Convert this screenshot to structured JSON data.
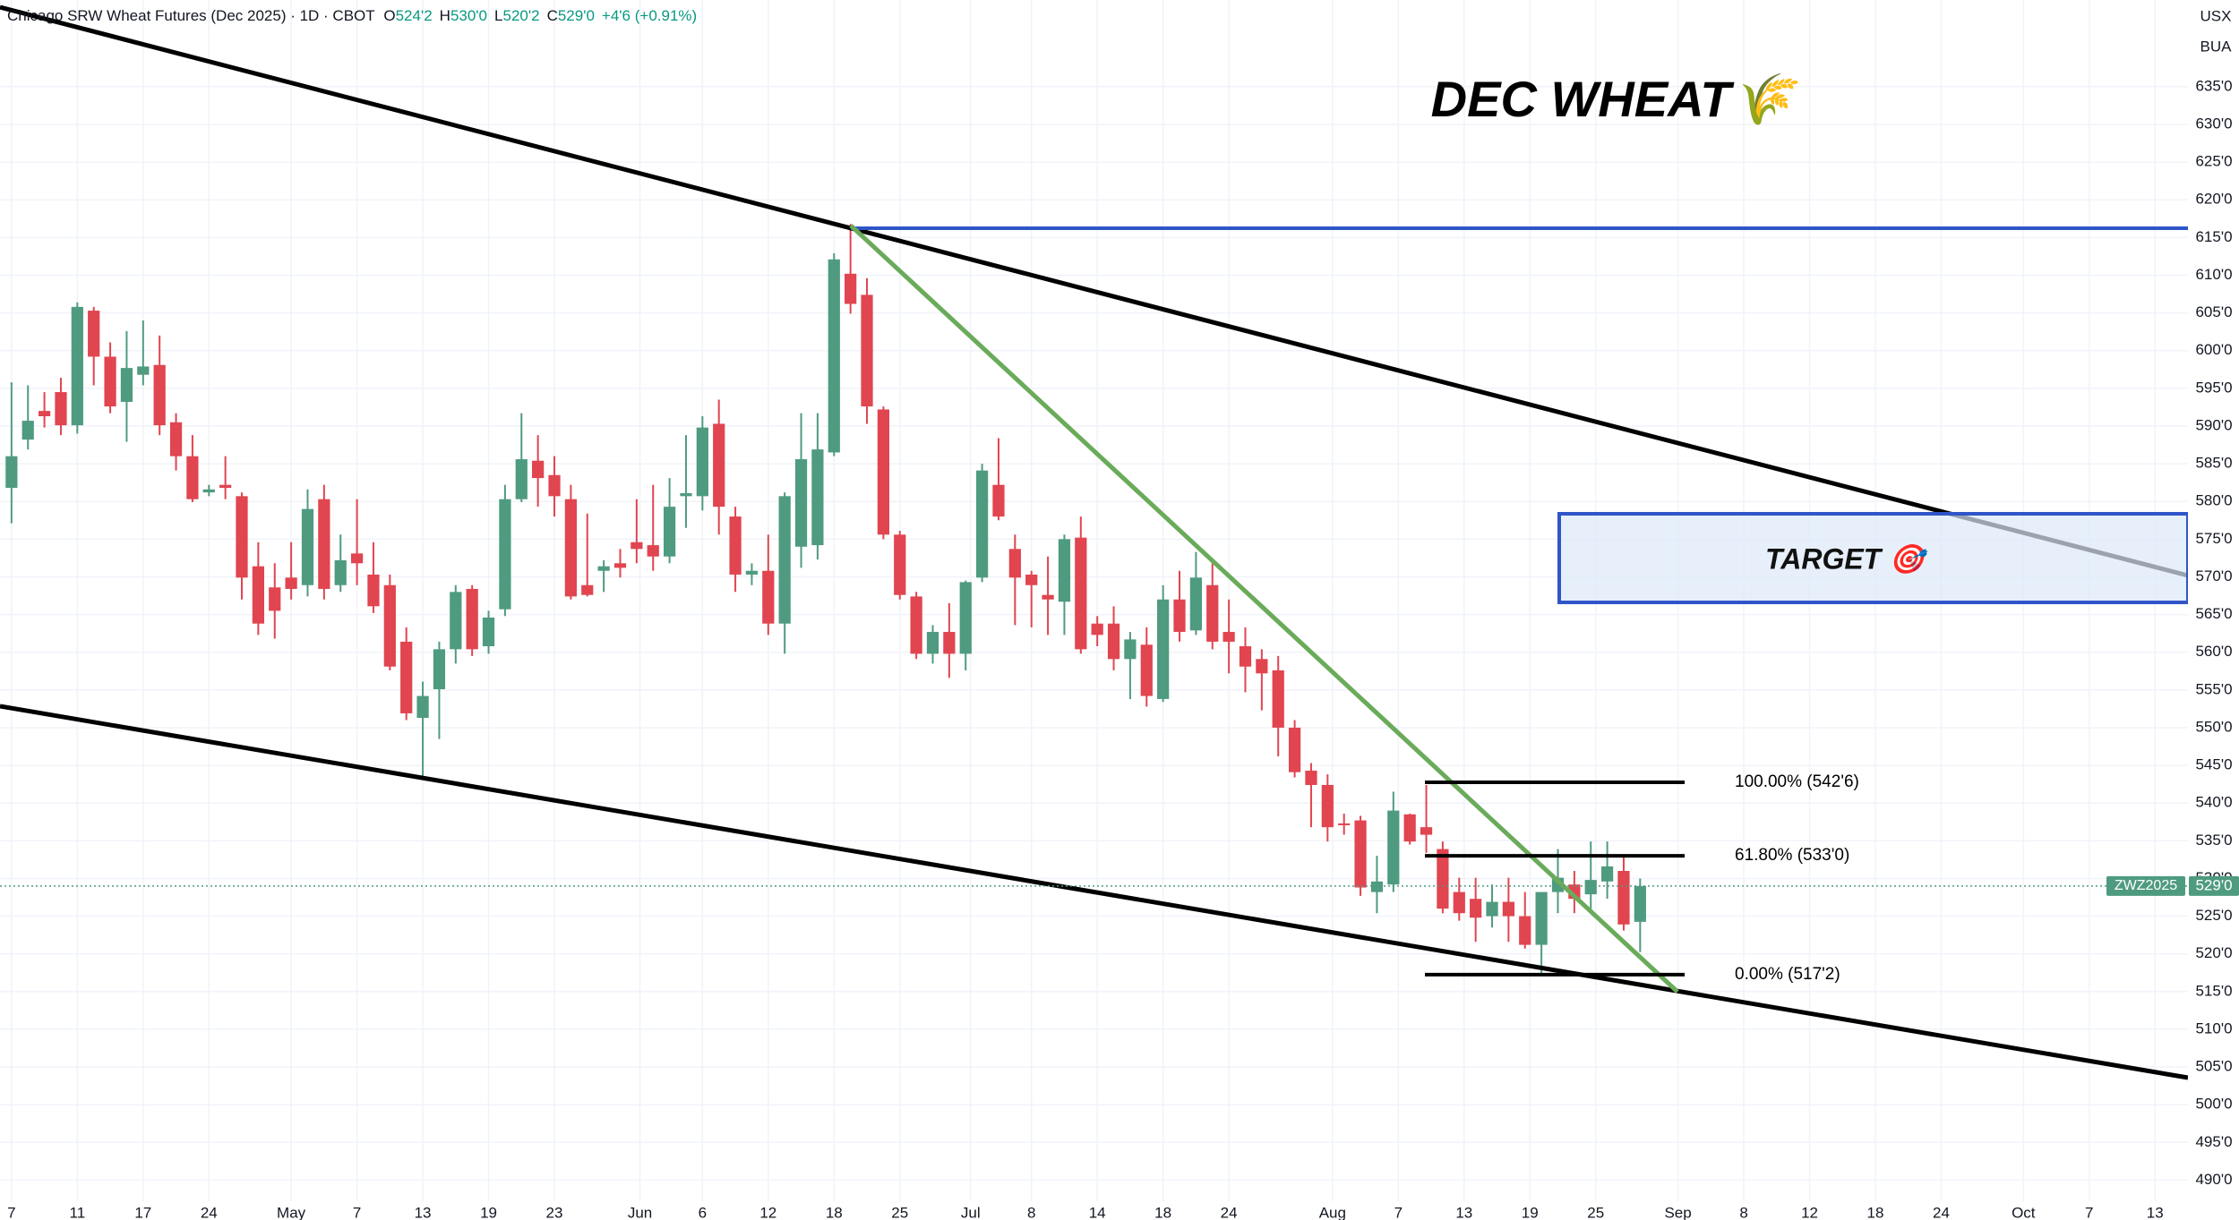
{
  "header": {
    "instrument": "Chicago SRW Wheat Futures (Dec 2025) · 1D · CBOT",
    "ohlc": [
      {
        "key": "O",
        "value": "524'2"
      },
      {
        "key": "H",
        "value": "530'0"
      },
      {
        "key": "L",
        "value": "520'2"
      },
      {
        "key": "C",
        "value": "529'0"
      }
    ],
    "change": "+4'6 (+0.91%)",
    "currency": "USX",
    "unit": "BUA"
  },
  "chart_data": {
    "type": "candlestick",
    "title": "DEC WHEAT🌾",
    "up_color": "#4f9b80",
    "down_color": "#e04550",
    "grid": true,
    "x": [
      0,
      1,
      2,
      3,
      4,
      5,
      6,
      7,
      8,
      9,
      10,
      11,
      12,
      13,
      14,
      15,
      16,
      17,
      18,
      19,
      20,
      21,
      22,
      23,
      24,
      25,
      26,
      27,
      28,
      29,
      30,
      31,
      32,
      33,
      34,
      35,
      36,
      37,
      38,
      39,
      40,
      41,
      42,
      43,
      44,
      45,
      46,
      47,
      48,
      49,
      50,
      51,
      52,
      53,
      54,
      55,
      56,
      57,
      58,
      59,
      60,
      61,
      62,
      63,
      64,
      65,
      66,
      67,
      68,
      69,
      70,
      71,
      72,
      73,
      74,
      75,
      76,
      77,
      78,
      79,
      80,
      81,
      82,
      83,
      84,
      85,
      86,
      87,
      88,
      89,
      90,
      91,
      92,
      93,
      94,
      95,
      96,
      97,
      98,
      99
    ],
    "open": [
      581.8,
      588.2,
      592.0,
      594.5,
      590.1,
      605.3,
      599.2,
      593.2,
      596.8,
      598.1,
      590.5,
      586.0,
      581.2,
      582.2,
      580.7,
      571.4,
      568.6,
      569.9,
      568.9,
      580.3,
      568.9,
      573.1,
      570.3,
      568.9,
      561.4,
      551.3,
      555.1,
      560.4,
      568.4,
      560.8,
      565.7,
      580.3,
      585.4,
      583.5,
      580.3,
      568.9,
      570.8,
      571.8,
      574.6,
      574.2,
      572.7,
      580.7,
      580.7,
      590.3,
      578.0,
      570.3,
      570.8,
      563.8,
      574.0,
      574.2,
      586.5,
      610.2,
      607.4,
      592.2,
      575.6,
      567.4,
      559.8,
      562.7,
      559.8,
      569.9,
      582.2,
      573.7,
      570.3,
      567.6,
      566.7,
      575.2,
      563.8,
      563.8,
      559.1,
      561.0,
      553.8,
      567.0,
      562.9,
      568.9,
      562.7,
      560.8,
      559.1,
      557.6,
      550.0,
      544.3,
      542.4,
      537.3,
      537.7,
      528.2,
      529.2,
      538.5,
      536.8,
      533.9,
      528.2,
      527.3,
      525.0,
      526.9,
      525.0,
      521.2,
      528.2,
      529.2,
      527.9,
      529.6,
      531.0,
      524.25
    ],
    "high": [
      595.8,
      595.4,
      594.5,
      596.4,
      606.4,
      605.8,
      601.1,
      602.6,
      604.0,
      602.0,
      591.7,
      588.8,
      582.2,
      586.0,
      581.2,
      574.6,
      571.8,
      574.6,
      581.6,
      582.2,
      575.6,
      580.3,
      574.6,
      570.3,
      563.3,
      556.1,
      561.4,
      568.9,
      568.9,
      565.5,
      582.2,
      591.7,
      588.8,
      586.0,
      582.2,
      578.4,
      572.2,
      573.7,
      580.3,
      582.2,
      583.1,
      588.8,
      591.3,
      593.5,
      579.3,
      571.8,
      575.6,
      581.2,
      591.7,
      591.7,
      612.9,
      616.8,
      609.6,
      592.6,
      576.1,
      568.0,
      563.6,
      566.5,
      569.5,
      585.0,
      588.4,
      575.6,
      570.8,
      572.7,
      575.6,
      578.0,
      564.8,
      566.1,
      562.7,
      563.3,
      568.9,
      570.8,
      573.3,
      571.8,
      567.0,
      563.3,
      560.4,
      559.5,
      551.0,
      545.3,
      543.8,
      538.6,
      538.3,
      533.0,
      541.5,
      538.6,
      542.4,
      534.9,
      530.1,
      530.1,
      529.2,
      530.1,
      528.2,
      528.2,
      533.9,
      531.0,
      534.9,
      534.9,
      533.0,
      530
    ],
    "low": [
      577.1,
      586.9,
      589.8,
      588.8,
      589.0,
      595.4,
      591.7,
      587.9,
      595.4,
      588.8,
      584.1,
      579.9,
      580.7,
      580.3,
      567.0,
      562.3,
      561.8,
      567.0,
      567.4,
      567.0,
      568.0,
      568.9,
      565.2,
      557.6,
      551.0,
      543.4,
      548.5,
      558.5,
      559.5,
      559.8,
      564.8,
      579.9,
      579.3,
      578.0,
      567.0,
      567.4,
      568.0,
      569.9,
      571.8,
      570.8,
      571.8,
      576.5,
      578.8,
      575.6,
      568.0,
      568.9,
      562.3,
      559.8,
      571.2,
      572.3,
      586.0,
      604.9,
      590.3,
      575.0,
      567.0,
      559.1,
      558.5,
      556.6,
      557.6,
      569.3,
      577.5,
      563.6,
      563.3,
      562.3,
      562.3,
      559.8,
      560.8,
      557.6,
      553.8,
      552.8,
      553.4,
      561.4,
      562.3,
      560.4,
      557.2,
      554.7,
      552.3,
      546.2,
      543.4,
      536.8,
      534.9,
      535.8,
      527.7,
      525.4,
      528.2,
      534.5,
      533.4,
      525.4,
      524.4,
      521.6,
      523.5,
      521.6,
      520.7,
      517.4,
      525.4,
      525.4,
      525.4,
      527.3,
      523.1,
      520.25
    ],
    "close": [
      586.0,
      590.7,
      591.3,
      590.1,
      605.8,
      599.2,
      592.6,
      597.7,
      597.9,
      590.1,
      586.0,
      580.3,
      581.6,
      581.8,
      569.9,
      563.8,
      565.5,
      568.4,
      579.0,
      568.4,
      572.2,
      571.8,
      566.1,
      558.1,
      551.9,
      554.2,
      560.4,
      568.0,
      560.4,
      564.6,
      580.3,
      585.6,
      583.1,
      580.7,
      567.4,
      567.6,
      571.4,
      571.2,
      573.7,
      572.7,
      579.3,
      581.1,
      589.8,
      579.3,
      570.3,
      570.8,
      563.8,
      580.7,
      585.6,
      586.9,
      612.1,
      606.2,
      592.6,
      575.6,
      567.6,
      559.8,
      562.7,
      559.8,
      569.3,
      584.1,
      578.0,
      569.9,
      568.9,
      567.0,
      575.0,
      560.4,
      562.3,
      559.1,
      561.7,
      554.2,
      567.0,
      562.7,
      569.9,
      561.4,
      561.4,
      558.1,
      557.2,
      550.0,
      544.1,
      542.4,
      536.8,
      537.1,
      528.8,
      529.6,
      539.0,
      534.9,
      535.8,
      526.0,
      525.4,
      524.8,
      526.9,
      525.0,
      521.2,
      528.2,
      530.1,
      527.3,
      529.8,
      531.6,
      523.9,
      529
    ],
    "xlim": [
      -0.7,
      132.3
    ],
    "xticks": [
      {
        "value": 0,
        "label": "7"
      },
      {
        "value": 4,
        "label": "11"
      },
      {
        "value": 8,
        "label": "17"
      },
      {
        "value": 12,
        "label": "24"
      },
      {
        "value": 17,
        "label": "May"
      },
      {
        "value": 21,
        "label": "7"
      },
      {
        "value": 25,
        "label": "13"
      },
      {
        "value": 29,
        "label": "19"
      },
      {
        "value": 33,
        "label": "23"
      },
      {
        "value": 38.2,
        "label": "Jun"
      },
      {
        "value": 42,
        "label": "6"
      },
      {
        "value": 46,
        "label": "12"
      },
      {
        "value": 50,
        "label": "18"
      },
      {
        "value": 54,
        "label": "25"
      },
      {
        "value": 58.3,
        "label": "Jul"
      },
      {
        "value": 62,
        "label": "8"
      },
      {
        "value": 66,
        "label": "14"
      },
      {
        "value": 70,
        "label": "18"
      },
      {
        "value": 74,
        "label": "24"
      },
      {
        "value": 80.3,
        "label": "Aug"
      },
      {
        "value": 84.3,
        "label": "7"
      },
      {
        "value": 88.3,
        "label": "13"
      },
      {
        "value": 92.3,
        "label": "19"
      },
      {
        "value": 96.3,
        "label": "25"
      },
      {
        "value": 101.3,
        "label": "Sep"
      },
      {
        "value": 105.3,
        "label": "8"
      },
      {
        "value": 109.3,
        "label": "12"
      },
      {
        "value": 113.3,
        "label": "18"
      },
      {
        "value": 117.3,
        "label": "24"
      },
      {
        "value": 122.3,
        "label": "Oct"
      },
      {
        "value": 126.3,
        "label": "7"
      },
      {
        "value": 130.3,
        "label": "13"
      }
    ],
    "ylim": [
      487.2,
      646.5
    ],
    "yticks": [
      {
        "value": 490,
        "label": "490'0"
      },
      {
        "value": 495,
        "label": "495'0"
      },
      {
        "value": 500,
        "label": "500'0"
      },
      {
        "value": 505,
        "label": "505'0"
      },
      {
        "value": 510,
        "label": "510'0"
      },
      {
        "value": 515,
        "label": "515'0"
      },
      {
        "value": 520,
        "label": "520'0"
      },
      {
        "value": 525,
        "label": "525'0"
      },
      {
        "value": 530,
        "label": "530'0"
      },
      {
        "value": 535,
        "label": "535'0"
      },
      {
        "value": 540,
        "label": "540'0"
      },
      {
        "value": 545,
        "label": "545'0"
      },
      {
        "value": 550,
        "label": "550'0"
      },
      {
        "value": 555,
        "label": "555'0"
      },
      {
        "value": 560,
        "label": "560'0"
      },
      {
        "value": 565,
        "label": "565'0"
      },
      {
        "value": 570,
        "label": "570'0"
      },
      {
        "value": 575,
        "label": "575'0"
      },
      {
        "value": 580,
        "label": "580'0"
      },
      {
        "value": 585,
        "label": "585'0"
      },
      {
        "value": 590,
        "label": "590'0"
      },
      {
        "value": 595,
        "label": "595'0"
      },
      {
        "value": 600,
        "label": "600'0"
      },
      {
        "value": 605,
        "label": "605'0"
      },
      {
        "value": 610,
        "label": "610'0"
      },
      {
        "value": 615,
        "label": "615'0"
      },
      {
        "value": 620,
        "label": "620'0"
      },
      {
        "value": 625,
        "label": "625'0"
      },
      {
        "value": 630,
        "label": "630'0"
      },
      {
        "value": 635,
        "label": "635'0"
      }
    ],
    "fib_levels": [
      {
        "value": 542.75,
        "label": "100.00% (542'6)"
      },
      {
        "value": 533,
        "label": "61.80% (533'0)"
      },
      {
        "value": 517.25,
        "label": "0.00% (517'2)"
      }
    ],
    "target_label": "TARGET 🎯",
    "symbol_tag": "ZWZ2025",
    "last_price": {
      "value": 529,
      "label": "529'0"
    }
  }
}
